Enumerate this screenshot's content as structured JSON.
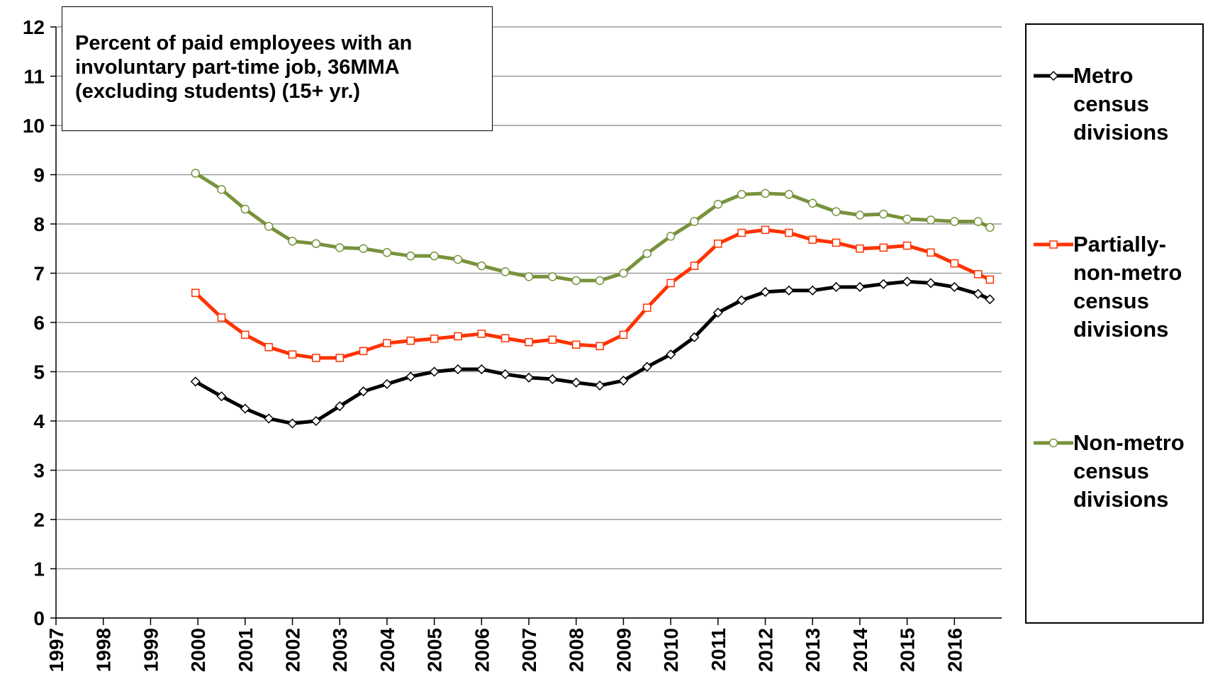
{
  "chart_data": {
    "type": "line",
    "title": "Percent of paid employees with an involuntary part-time job, 36MMA (excluding students) (15+ yr.)",
    "x": [
      1999.95,
      2000.5,
      2001,
      2001.5,
      2002,
      2002.5,
      2003,
      2003.5,
      2004,
      2004.5,
      2005,
      2005.5,
      2006,
      2006.5,
      2007,
      2007.5,
      2008,
      2008.5,
      2009,
      2009.5,
      2010,
      2010.5,
      2011,
      2011.5,
      2012,
      2012.5,
      2013,
      2013.5,
      2014,
      2014.5,
      2015,
      2015.5,
      2016,
      2016.5,
      2016.75
    ],
    "series": [
      {
        "name": "Metro census divisions",
        "color": "#000000",
        "marker": "diamond",
        "values": [
          4.8,
          4.5,
          4.25,
          4.05,
          3.95,
          4.0,
          4.3,
          4.6,
          4.75,
          4.9,
          5.0,
          5.05,
          5.05,
          4.95,
          4.88,
          4.85,
          4.78,
          4.72,
          4.82,
          5.1,
          5.35,
          5.7,
          6.2,
          6.45,
          6.62,
          6.65,
          6.65,
          6.72,
          6.72,
          6.78,
          6.83,
          6.8,
          6.72,
          6.58,
          6.47
        ]
      },
      {
        "name": "Partially-non-metro census divisions",
        "color": "#ff3300",
        "marker": "square",
        "values": [
          6.6,
          6.1,
          5.75,
          5.5,
          5.35,
          5.28,
          5.28,
          5.42,
          5.58,
          5.63,
          5.67,
          5.72,
          5.77,
          5.68,
          5.6,
          5.65,
          5.55,
          5.52,
          5.75,
          6.3,
          6.8,
          7.15,
          7.6,
          7.82,
          7.88,
          7.82,
          7.68,
          7.62,
          7.5,
          7.52,
          7.56,
          7.42,
          7.2,
          6.98,
          6.87
        ]
      },
      {
        "name": "Non-metro census divisions",
        "color": "#77933c",
        "marker": "circle",
        "values": [
          9.03,
          8.7,
          8.3,
          7.95,
          7.65,
          7.6,
          7.52,
          7.5,
          7.42,
          7.35,
          7.35,
          7.28,
          7.15,
          7.03,
          6.93,
          6.93,
          6.85,
          6.85,
          7.0,
          7.4,
          7.75,
          8.05,
          8.4,
          8.6,
          8.62,
          8.6,
          8.42,
          8.25,
          8.18,
          8.2,
          8.1,
          8.08,
          8.05,
          8.05,
          7.93
        ]
      }
    ],
    "xlim": [
      1997,
      2017
    ],
    "xticks": [
      1997,
      1998,
      1999,
      2000,
      2001,
      2002,
      2003,
      2004,
      2005,
      2006,
      2007,
      2008,
      2009,
      2010,
      2011,
      2012,
      2013,
      2014,
      2015,
      2016
    ],
    "ylim": [
      0,
      12
    ],
    "yticks": [
      0,
      1,
      2,
      3,
      4,
      5,
      6,
      7,
      8,
      9,
      10,
      11,
      12
    ],
    "grid": true,
    "legend": "right"
  }
}
